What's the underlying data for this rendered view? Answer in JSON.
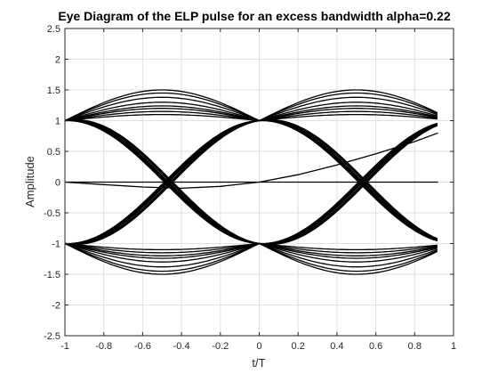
{
  "chart_data": {
    "type": "line",
    "title": "Eye Diagram of the ELP pulse for an excess bandwidth alpha=0.22",
    "xlabel": "t/T",
    "ylabel": "Amplitude",
    "xlim": [
      -1,
      1
    ],
    "ylim": [
      -2.5,
      2.5
    ],
    "x_ticks": [
      "-1",
      "-0.8",
      "-0.6",
      "-0.4",
      "-0.2",
      "0",
      "0.2",
      "0.4",
      "0.6",
      "0.8",
      "1"
    ],
    "y_ticks": [
      "2.5",
      "2",
      "1.5",
      "1",
      "0.5",
      "0",
      "-0.5",
      "-1",
      "-1.5",
      "-2",
      "-2.5"
    ],
    "grid": true,
    "line_color": "#000000",
    "x_data_end": 0.92,
    "eye_levels": [
      -1,
      1
    ],
    "eye_crossings": [
      -0.5,
      0.5
    ],
    "isi_peak_offsets": [
      0.5,
      0.45,
      0.38,
      0.3,
      0.24,
      0.2,
      0.15,
      0.1
    ],
    "start_trace": {
      "x": [
        -1,
        -0.8,
        -0.6,
        -0.4,
        -0.2,
        0,
        0.2,
        0.4,
        0.6,
        0.8,
        0.92
      ],
      "y": [
        0,
        -0.04,
        -0.08,
        -0.1,
        -0.07,
        0,
        0.12,
        0.28,
        0.46,
        0.66,
        0.8
      ]
    },
    "midline_trace": {
      "x": [
        -1,
        -0.5,
        0,
        0.5,
        0.92
      ],
      "y": [
        0,
        0,
        0,
        0,
        0
      ]
    }
  }
}
